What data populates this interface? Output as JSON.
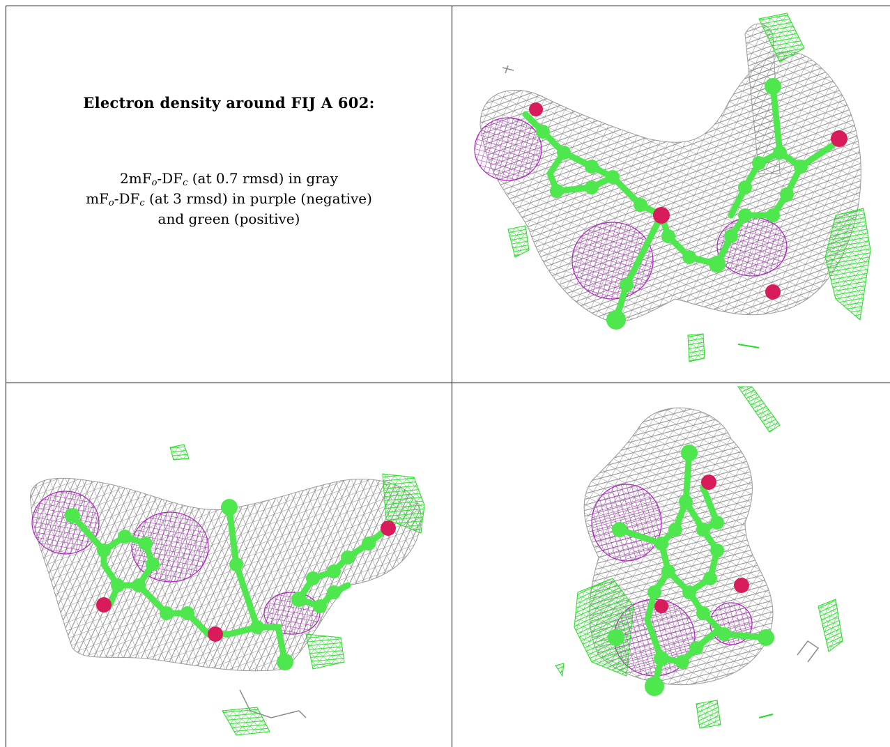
{
  "caption": {
    "title": "Electron density around FIJ A 602:",
    "line1": {
      "a": "2mF",
      "a_sub": "o",
      "b": "-DF",
      "b_sub": "c",
      "rest": " (at 0.7 rmsd) in gray"
    },
    "line2": {
      "a": "mF",
      "a_sub": "o",
      "b": "-DF",
      "b_sub": "c",
      "rest": " (at 3 rmsd) in purple (negative)"
    },
    "line3": "and green (positive)"
  },
  "colors": {
    "mesh_2fofc": "#8c8c8c",
    "mesh_negative": "#b01fc0",
    "mesh_positive": "#22dd22",
    "carbon": "#4ee84e",
    "oxygen": "#d81b5a",
    "grid_line": "#000000"
  },
  "views": [
    {
      "name": "view-top-right"
    },
    {
      "name": "view-bottom-left"
    },
    {
      "name": "view-bottom-right"
    }
  ]
}
